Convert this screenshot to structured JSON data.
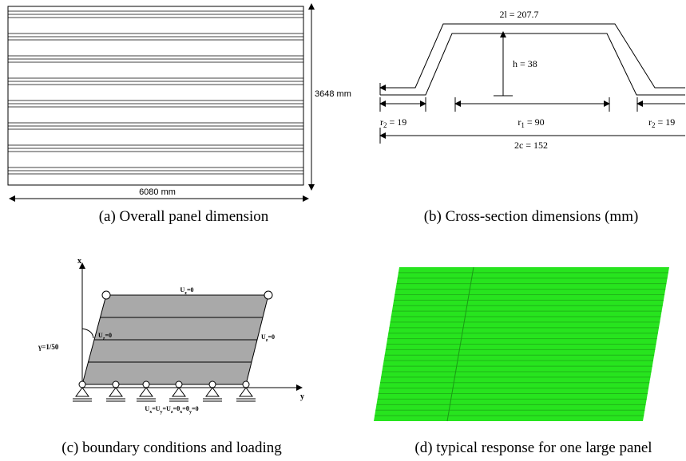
{
  "panel_a": {
    "width_label": "6080 mm",
    "height_label": "3648 mm",
    "caption": "(a) Overall panel dimension"
  },
  "panel_b": {
    "top_label": "2l = 207.7",
    "height_label": "h = 38",
    "left_label": [
      "r",
      "2",
      " = 19"
    ],
    "middle_label": [
      "r",
      "1",
      " = 90"
    ],
    "right_label": [
      "r",
      "2",
      " = 19"
    ],
    "bottom_label": "2c = 152",
    "caption": "(b) Cross-section dimensions (mm)"
  },
  "panel_c": {
    "x_axis": "x",
    "y_axis": "y",
    "top_bc": [
      "U",
      "z",
      "=0"
    ],
    "left_bc": [
      "U",
      "z",
      "=0"
    ],
    "right_bc": [
      "U",
      "z",
      "=0"
    ],
    "bottom_bc": [
      "U",
      "x",
      "=U",
      "y",
      "=U",
      "z",
      "=θ",
      "x",
      "=θ",
      "y",
      "=0"
    ],
    "shear": "γ=1/50",
    "caption": "(c) boundary conditions and loading"
  },
  "panel_d": {
    "caption": "(d) typical response for one large panel"
  }
}
